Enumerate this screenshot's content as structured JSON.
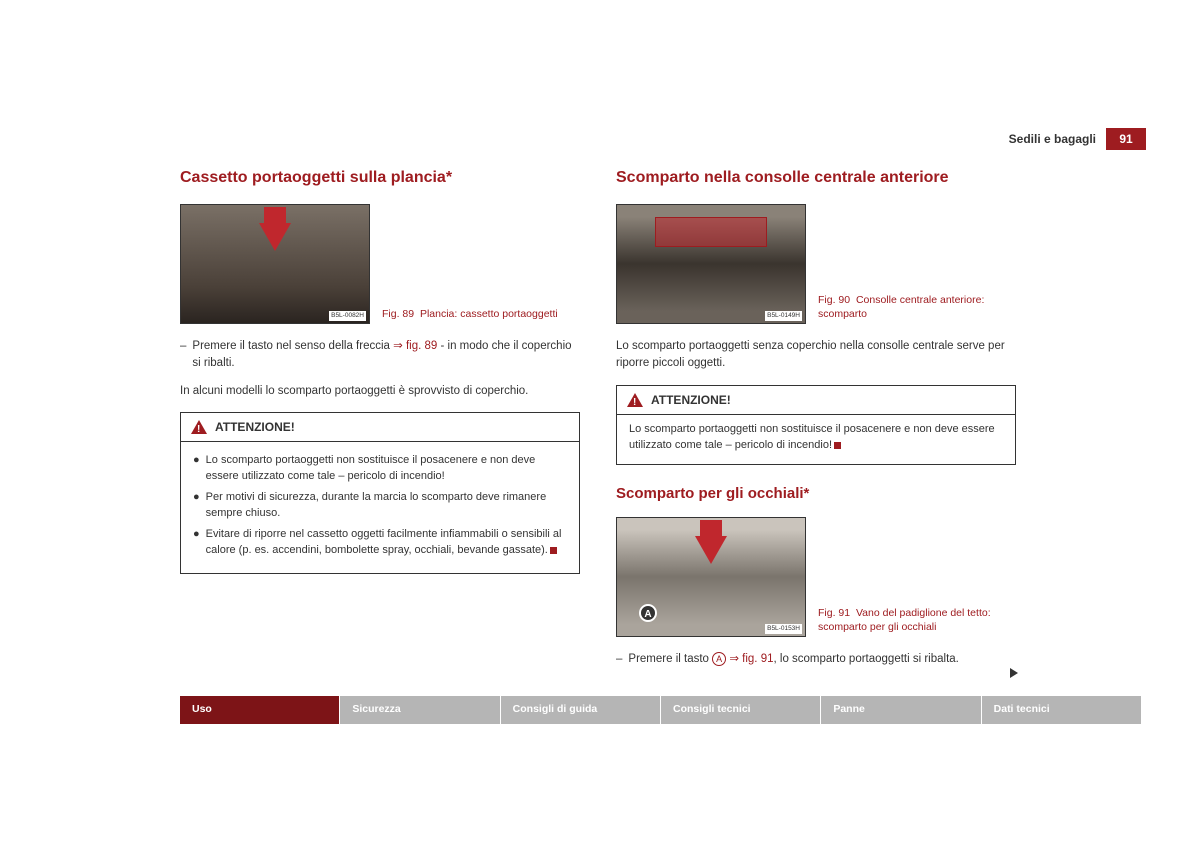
{
  "header": {
    "section": "Sedili e bagagli",
    "page": "91"
  },
  "colors": {
    "brand": "#9e1c20",
    "nav_active": "#7d1417",
    "nav_inactive": "#b5b5b5",
    "text": "#333333"
  },
  "left": {
    "title": "Cassetto portaoggetti sulla plancia*",
    "fig": {
      "num": "Fig. 89",
      "caption": "Plancia: cassetto portaoggetti",
      "code": "B5L-0082H"
    },
    "instruction_pre": "Premere il tasto nel senso della freccia ",
    "instruction_ref": "⇒ fig. 89",
    "instruction_post": " - in modo che il coperchio si ribalti.",
    "note": "In alcuni modelli lo scomparto portaoggetti è sprovvisto di coperchio.",
    "warn_title": "ATTENZIONE!",
    "warn_items": [
      "Lo scomparto portaoggetti non sostituisce il posacenere e non deve essere utilizzato come tale – pericolo di incendio!",
      "Per motivi di sicurezza, durante la marcia lo scomparto deve rimanere sempre chiuso.",
      "Evitare di riporre nel cassetto oggetti facilmente infiammabili o sensibili al calore (p. es. accendini, bombolette spray, occhiali, bevande gassate)."
    ]
  },
  "right": {
    "title1": "Scomparto nella consolle centrale anteriore",
    "fig1": {
      "num": "Fig. 90",
      "caption": "Consolle centrale anteriore: scomparto",
      "code": "B5L-0149H"
    },
    "para1": "Lo scomparto portaoggetti senza coperchio nella consolle centrale serve per riporre piccoli oggetti.",
    "warn_title": "ATTENZIONE!",
    "warn_text": "Lo scomparto portaoggetti non sostituisce il posacenere e non deve essere utilizzato come tale – pericolo di incendio!",
    "title2": "Scomparto per gli occhiali*",
    "fig2": {
      "num": "Fig. 91",
      "caption": "Vano del padiglione del tetto: scomparto per gli occhiali",
      "code": "B5L-0153H",
      "marker": "A"
    },
    "instruction2_pre": "Premere il tasto ",
    "instruction2_marker": "A",
    "instruction2_ref": " ⇒ fig. 91",
    "instruction2_post": ", lo scomparto portaoggetti si ribalta."
  },
  "nav": [
    "Uso",
    "Sicurezza",
    "Consigli di guida",
    "Consigli tecnici",
    "Panne",
    "Dati tecnici"
  ]
}
